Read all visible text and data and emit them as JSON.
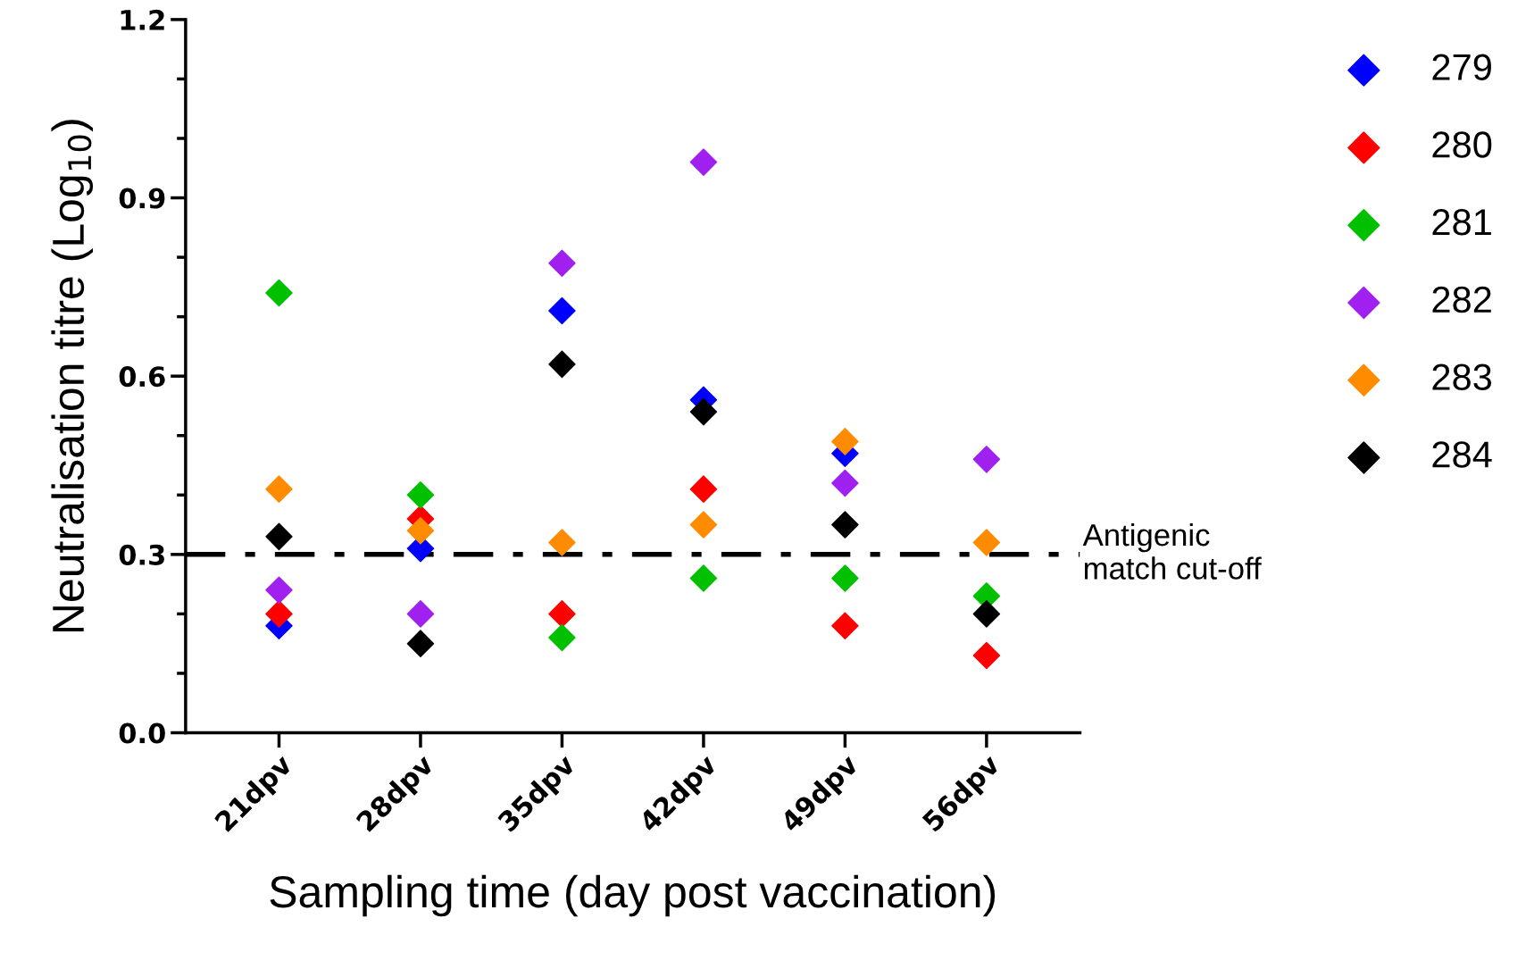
{
  "chart_data": {
    "type": "scatter",
    "xlabel": "Sampling time (day post vaccination)",
    "ylabel": "Neutralisation titre (Log$_{10}$)",
    "categories": [
      "21dpv",
      "28dpv",
      "35dpv",
      "42dpv",
      "49dpv",
      "56dpv"
    ],
    "series": [
      {
        "name": "279",
        "color": "#0000ff",
        "values": [
          0.18,
          0.31,
          0.71,
          0.56,
          0.47,
          null
        ]
      },
      {
        "name": "280",
        "color": "#ff0000",
        "values": [
          0.2,
          0.36,
          0.2,
          0.41,
          0.18,
          0.13
        ]
      },
      {
        "name": "281",
        "color": "#00c000",
        "values": [
          0.74,
          0.4,
          0.16,
          0.26,
          0.26,
          0.23
        ]
      },
      {
        "name": "282",
        "color": "#a020f0",
        "values": [
          0.24,
          0.2,
          0.79,
          0.96,
          0.42,
          0.46
        ]
      },
      {
        "name": "283",
        "color": "#ff8c00",
        "values": [
          0.41,
          0.34,
          0.32,
          0.35,
          0.49,
          0.32
        ]
      },
      {
        "name": "284",
        "color": "#000000",
        "values": [
          0.33,
          0.15,
          0.62,
          0.54,
          0.35,
          0.2
        ]
      }
    ],
    "ylim": [
      0,
      1.2
    ],
    "yticks": [
      {
        "value": 0,
        "label": "0.0"
      },
      {
        "value": 0.3,
        "label": "0.3"
      },
      {
        "value": 0.6,
        "label": "0.6"
      },
      {
        "value": 0.9,
        "label": "0.9"
      },
      {
        "value": 1.2,
        "label": "1.2"
      }
    ],
    "ref_lines": [
      {
        "axis": "y",
        "value": 0.3,
        "label": "Antigenic\nmatch cut-off",
        "color": "#000000",
        "line_style": "dashdot"
      }
    ],
    "marker": "diamond",
    "grid": false,
    "legend": "right"
  }
}
